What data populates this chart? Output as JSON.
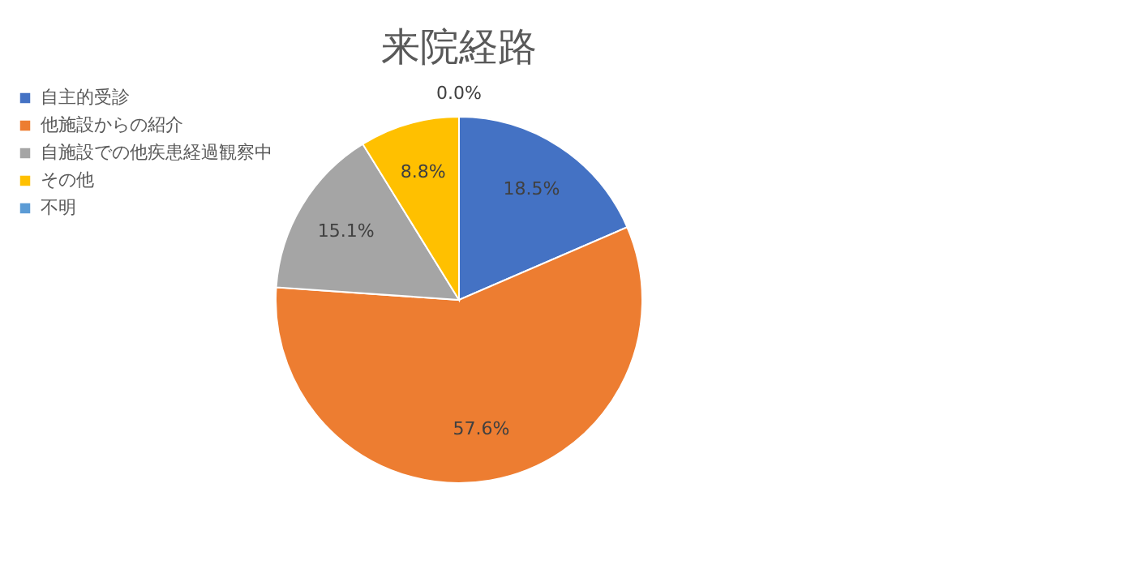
{
  "chart_data": {
    "type": "pie",
    "title": "来院経路",
    "categories": [
      "自主的受診",
      "他施設からの紹介",
      "自施設での他疾患経過観察中",
      "その他",
      "不明"
    ],
    "values": [
      18.5,
      57.6,
      15.1,
      8.8,
      0.0
    ],
    "colors": [
      "#4472c4",
      "#ed7d31",
      "#a5a5a5",
      "#ffc000",
      "#5b9bd5"
    ],
    "value_labels": [
      "18.5%",
      "57.6%",
      "15.1%",
      "8.8%",
      "0.0%"
    ],
    "legend": "left"
  }
}
